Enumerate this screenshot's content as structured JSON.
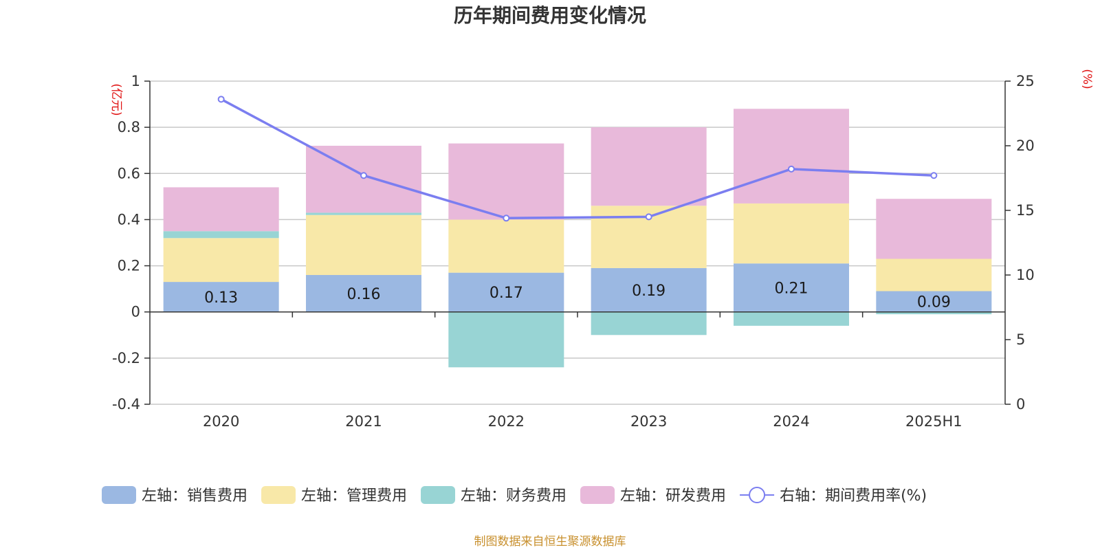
{
  "chart_data": {
    "type": "bar",
    "stacked": true,
    "title": "历年期间费用变化情况",
    "categories": [
      "2020",
      "2021",
      "2022",
      "2023",
      "2024",
      "2025H1"
    ],
    "left_axis": {
      "unit": "(亿元)",
      "ylim": [
        -0.4,
        1
      ],
      "ticks": [
        "-0.4",
        "-0.2",
        "0",
        "0.2",
        "0.4",
        "0.6",
        "0.8",
        "1"
      ],
      "tick_values": [
        -0.4,
        -0.2,
        0,
        0.2,
        0.4,
        0.6,
        0.8,
        1
      ]
    },
    "right_axis": {
      "unit": "(%)",
      "ylim": [
        0,
        25
      ],
      "ticks": [
        "0",
        "5",
        "10",
        "15",
        "20",
        "25"
      ],
      "tick_values": [
        0,
        5,
        10,
        15,
        20,
        25
      ]
    },
    "series": [
      {
        "name": "左轴：销售费用",
        "type": "bar",
        "axis": "left",
        "color": "#9bb8e2",
        "values": [
          0.13,
          0.16,
          0.17,
          0.19,
          0.21,
          0.09
        ],
        "labels": [
          "0.13",
          "0.16",
          "0.17",
          "0.19",
          "0.21",
          "0.09"
        ]
      },
      {
        "name": "左轴：管理费用",
        "type": "bar",
        "axis": "left",
        "color": "#f8e8a8",
        "values": [
          0.19,
          0.26,
          0.23,
          0.27,
          0.26,
          0.14
        ]
      },
      {
        "name": "左轴：财务费用",
        "type": "bar",
        "axis": "left",
        "color": "#98d4d4",
        "values": [
          0.03,
          0.01,
          -0.24,
          -0.1,
          -0.06,
          -0.01
        ]
      },
      {
        "name": "左轴：研发费用",
        "type": "bar",
        "axis": "left",
        "color": "#e8b9da",
        "values": [
          0.19,
          0.29,
          0.33,
          0.34,
          0.41,
          0.26
        ]
      },
      {
        "name": "右轴：期间费用率(%)",
        "type": "line",
        "axis": "right",
        "color": "#7b7ef0",
        "values": [
          23.6,
          17.7,
          14.4,
          14.5,
          18.2,
          17.7
        ]
      }
    ],
    "grid": true,
    "legend_position": "bottom"
  },
  "source_note": "制图数据来自恒生聚源数据库"
}
